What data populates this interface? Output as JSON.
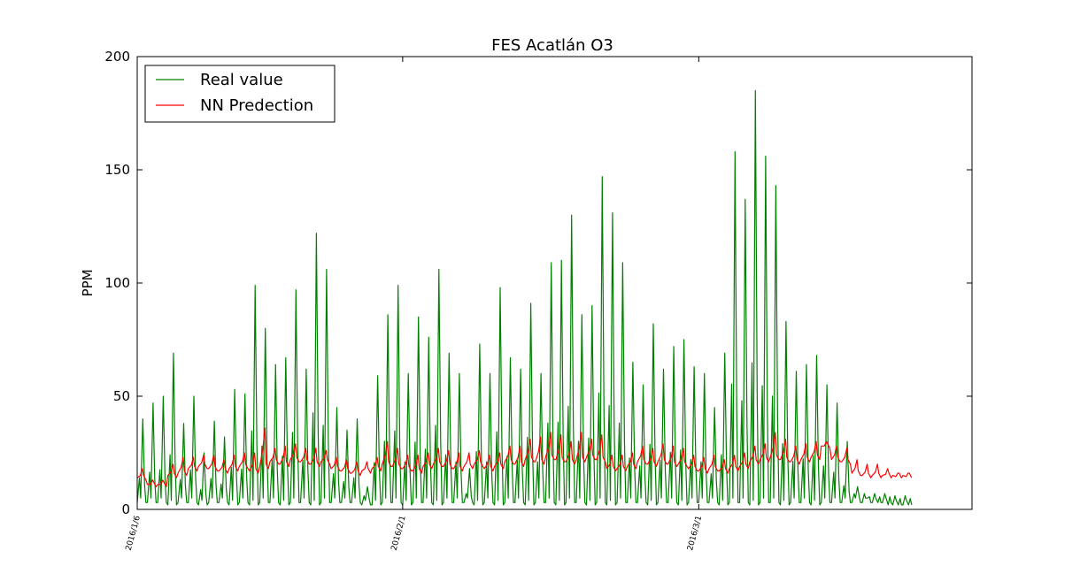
{
  "chart_data": {
    "type": "line",
    "title": "FES Acatlán O3",
    "xlabel": "",
    "ylabel": "PPM",
    "ylim": [
      0,
      200
    ],
    "y_ticks": [
      0,
      50,
      100,
      150,
      200
    ],
    "x_range": [
      "2016-01-06",
      "2016-03-21"
    ],
    "x_ticks": [
      {
        "date": "2016-01-06",
        "label": "2016/1/6"
      },
      {
        "date": "2016-02-01",
        "label": "2016/2/1"
      },
      {
        "date": "2016-03-01",
        "label": "2016/3/1"
      }
    ],
    "legend_position": "top-left",
    "grid": false,
    "series": [
      {
        "name": "Real value",
        "color": "#008000",
        "x": [
          "2016-01-06",
          "2016-01-07",
          "2016-01-08",
          "2016-01-09",
          "2016-01-10",
          "2016-01-11",
          "2016-01-12",
          "2016-01-13",
          "2016-01-14",
          "2016-01-15",
          "2016-01-16",
          "2016-01-17",
          "2016-01-18",
          "2016-01-19",
          "2016-01-20",
          "2016-01-21",
          "2016-01-22",
          "2016-01-23",
          "2016-01-24",
          "2016-01-25",
          "2016-01-26",
          "2016-01-27",
          "2016-01-28",
          "2016-01-29",
          "2016-01-30",
          "2016-01-31",
          "2016-02-01",
          "2016-02-02",
          "2016-02-03",
          "2016-02-04",
          "2016-02-05",
          "2016-02-06",
          "2016-02-07",
          "2016-02-08",
          "2016-02-09",
          "2016-02-10",
          "2016-02-11",
          "2016-02-12",
          "2016-02-13",
          "2016-02-14",
          "2016-02-15",
          "2016-02-16",
          "2016-02-17",
          "2016-02-18",
          "2016-02-19",
          "2016-02-20",
          "2016-02-21",
          "2016-02-22",
          "2016-02-23",
          "2016-02-24",
          "2016-02-25",
          "2016-02-26",
          "2016-02-27",
          "2016-02-28",
          "2016-02-29",
          "2016-03-01",
          "2016-03-02",
          "2016-03-03",
          "2016-03-04",
          "2016-03-05",
          "2016-03-06",
          "2016-03-07",
          "2016-03-08",
          "2016-03-09",
          "2016-03-10",
          "2016-03-11",
          "2016-03-12",
          "2016-03-13",
          "2016-03-14",
          "2016-03-15",
          "2016-03-16",
          "2016-03-17",
          "2016-03-18",
          "2016-03-19",
          "2016-03-20",
          "2016-03-21"
        ],
        "values": [
          40,
          47,
          50,
          69,
          38,
          50,
          25,
          39,
          32,
          53,
          51,
          99,
          80,
          64,
          67,
          97,
          62,
          122,
          106,
          45,
          35,
          40,
          10,
          59,
          86,
          99,
          60,
          85,
          76,
          106,
          69,
          60,
          18,
          73,
          60,
          98,
          67,
          62,
          91,
          60,
          109,
          110,
          130,
          86,
          90,
          147,
          131,
          109,
          65,
          55,
          82,
          62,
          72,
          75,
          63,
          60,
          45,
          69,
          158,
          137,
          185,
          156,
          143,
          83,
          61,
          64,
          68,
          55,
          47,
          30,
          10,
          5,
          3,
          2,
          2,
          2
        ],
        "baseline": [
          3,
          3,
          3,
          2,
          3,
          3,
          2,
          3,
          3,
          2,
          3,
          2,
          3,
          3,
          2,
          3,
          3,
          2,
          3,
          3,
          3,
          3,
          2,
          2,
          3,
          3,
          2,
          3,
          3,
          2,
          3,
          3,
          3,
          2,
          3,
          2,
          3,
          3,
          2,
          3,
          3,
          2,
          3,
          3,
          2,
          3,
          2,
          3,
          3,
          3,
          2,
          3,
          3,
          2,
          3,
          3,
          3,
          2,
          3,
          3,
          2,
          3,
          3,
          2,
          3,
          3,
          2,
          3,
          3,
          3,
          3,
          3,
          3,
          3,
          2,
          2
        ]
      },
      {
        "name": "NN Predection",
        "color": "#ff0000",
        "x": [
          "2016-01-06",
          "2016-01-07",
          "2016-01-08",
          "2016-01-09",
          "2016-01-10",
          "2016-01-11",
          "2016-01-12",
          "2016-01-13",
          "2016-01-14",
          "2016-01-15",
          "2016-01-16",
          "2016-01-17",
          "2016-01-18",
          "2016-01-19",
          "2016-01-20",
          "2016-01-21",
          "2016-01-22",
          "2016-01-23",
          "2016-01-24",
          "2016-01-25",
          "2016-01-26",
          "2016-01-27",
          "2016-01-28",
          "2016-01-29",
          "2016-01-30",
          "2016-01-31",
          "2016-02-01",
          "2016-02-02",
          "2016-02-03",
          "2016-02-04",
          "2016-02-05",
          "2016-02-06",
          "2016-02-07",
          "2016-02-08",
          "2016-02-09",
          "2016-02-10",
          "2016-02-11",
          "2016-02-12",
          "2016-02-13",
          "2016-02-14",
          "2016-02-15",
          "2016-02-16",
          "2016-02-17",
          "2016-02-18",
          "2016-02-19",
          "2016-02-20",
          "2016-02-21",
          "2016-02-22",
          "2016-02-23",
          "2016-02-24",
          "2016-02-25",
          "2016-02-26",
          "2016-02-27",
          "2016-02-28",
          "2016-02-29",
          "2016-03-01",
          "2016-03-02",
          "2016-03-03",
          "2016-03-04",
          "2016-03-05",
          "2016-03-06",
          "2016-03-07",
          "2016-03-08",
          "2016-03-09",
          "2016-03-10",
          "2016-03-11",
          "2016-03-12",
          "2016-03-13",
          "2016-03-14",
          "2016-03-15",
          "2016-03-16",
          "2016-03-17",
          "2016-03-18",
          "2016-03-19",
          "2016-03-20",
          "2016-03-21"
        ],
        "values": [
          14,
          11,
          11,
          15,
          16,
          18,
          19,
          18,
          17,
          18,
          19,
          17,
          19,
          21,
          20,
          22,
          21,
          20,
          21,
          18,
          17,
          16,
          17,
          18,
          20,
          19,
          18,
          17,
          19,
          20,
          19,
          18,
          19,
          20,
          18,
          19,
          21,
          20,
          22,
          21,
          23,
          22,
          21,
          22,
          23,
          22,
          18,
          18,
          19,
          21,
          20,
          21,
          20,
          20,
          18,
          17,
          18,
          17,
          18,
          19,
          21,
          22,
          23,
          22,
          21,
          22,
          23,
          28,
          22,
          21,
          16,
          15,
          15,
          15,
          15,
          15
        ],
        "spikes": [
          18,
          13,
          13,
          20,
          23,
          23,
          24,
          24,
          22,
          24,
          25,
          25,
          36,
          27,
          28,
          29,
          27,
          27,
          26,
          23,
          22,
          21,
          21,
          23,
          30,
          27,
          24,
          24,
          25,
          27,
          26,
          25,
          25,
          26,
          24,
          25,
          28,
          28,
          31,
          32,
          34,
          33,
          30,
          34,
          31,
          33,
          24,
          24,
          25,
          28,
          27,
          29,
          28,
          27,
          24,
          23,
          24,
          22,
          24,
          25,
          28,
          29,
          34,
          31,
          28,
          29,
          30,
          30,
          28,
          27,
          22,
          20,
          20,
          18,
          16,
          16
        ]
      }
    ]
  }
}
